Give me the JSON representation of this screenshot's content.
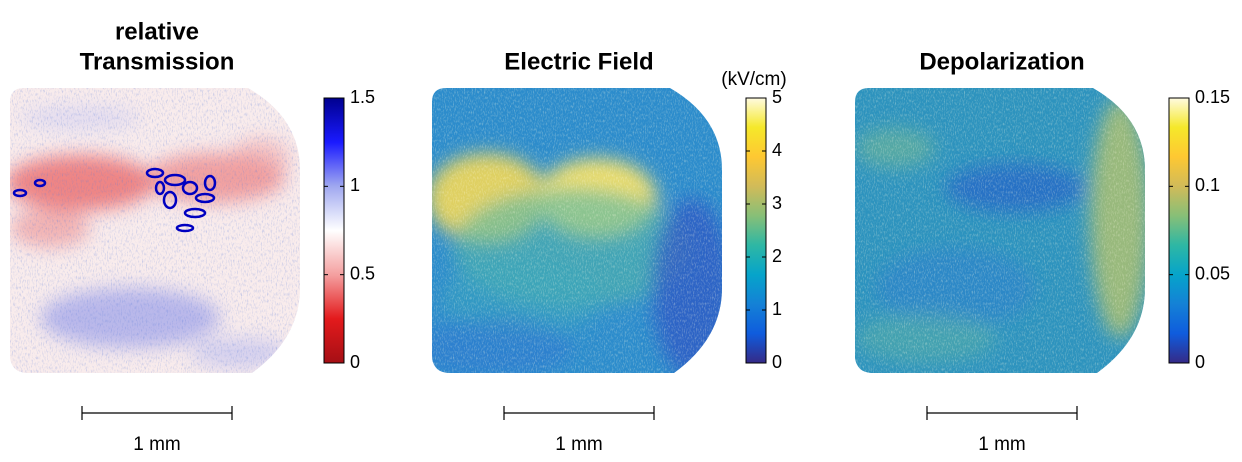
{
  "chart_data": [
    {
      "type": "image",
      "title": [
        "relative",
        "Transmission"
      ],
      "colormap": [
        "#a50f15",
        "#e31a1c",
        "#f4a0a0",
        "#ffffff",
        "#a0a8f0",
        "#1a1aff",
        "#00008f"
      ],
      "ylim": [
        0,
        1.5
      ],
      "yticks": [
        0,
        0.5,
        1,
        1.5
      ],
      "scalebar_label": "1 mm"
    },
    {
      "type": "image",
      "title": [
        "Electric Field"
      ],
      "colorbar_label": "(kV/cm)",
      "colormap": [
        "#352a87",
        "#0f5cdd",
        "#1481d6",
        "#06a4ca",
        "#2eb7a4",
        "#87bf77",
        "#d1bb59",
        "#fec832",
        "#f5e82a",
        "#fffbe0"
      ],
      "ylim": [
        0,
        5
      ],
      "yticks": [
        0,
        1,
        2,
        3,
        4,
        5
      ],
      "scalebar_label": "1 mm"
    },
    {
      "type": "image",
      "title": [
        "Depolarization"
      ],
      "colormap": [
        "#352a87",
        "#0f5cdd",
        "#1481d6",
        "#06a4ca",
        "#2eb7a4",
        "#87bf77",
        "#d1bb59",
        "#fec832",
        "#f5e82a",
        "#fffbe0"
      ],
      "ylim": [
        0,
        0.15
      ],
      "yticks": [
        0,
        0.05,
        0.1,
        0.15
      ],
      "scalebar_label": "1 mm"
    }
  ]
}
